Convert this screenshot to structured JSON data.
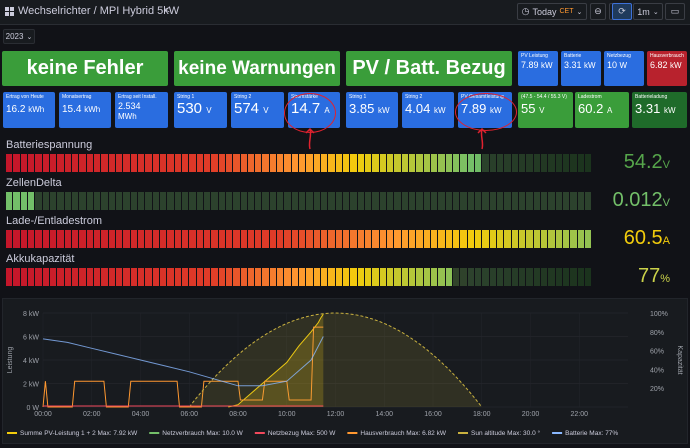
{
  "header": {
    "title": "Wechselrichter  / MPI Hybrid 5kW",
    "time_label": "Today",
    "timezone": "CET",
    "refresh": "1m"
  },
  "variable": {
    "year": "2023"
  },
  "status": [
    {
      "text": "keine Fehler",
      "color": "#3a9d3a"
    },
    {
      "text": "keine Warnungen",
      "color": "#3a9d3a"
    },
    {
      "text": "PV / Batt. Bezug",
      "color": "#3a9d3a"
    }
  ],
  "stats": {
    "top_right": [
      {
        "label": "PV Leistung",
        "value": "7.89",
        "unit": "kW"
      },
      {
        "label": "Batterie",
        "value": "3.31",
        "unit": "kW"
      },
      {
        "label": "Netzbezug",
        "value": "10",
        "unit": "W"
      },
      {
        "label": "Hausverbrauch",
        "value": "6.82",
        "unit": "kW"
      }
    ],
    "row": [
      {
        "label": "Ertrag von Heute",
        "value": "16.2",
        "unit": "kWh"
      },
      {
        "label": "Monatsertrag",
        "value": "15.4",
        "unit": "kWh"
      },
      {
        "label": "Ertrag seit Install.",
        "value": "2.534",
        "unit": "MWh"
      },
      {
        "label": "String 1",
        "value": "530",
        "unit": "V"
      },
      {
        "label": "String 2",
        "value": "574",
        "unit": "V"
      },
      {
        "label": "Stromstärke",
        "value": "14.7",
        "unit": "A"
      },
      {
        "label": "String 1",
        "value": "3.85",
        "unit": "kW"
      },
      {
        "label": "String 2",
        "value": "4.04",
        "unit": "kW"
      },
      {
        "label": "PV Gesamtleistung",
        "value": "7.89",
        "unit": "kW"
      },
      {
        "label": "(47.5 - 54.4 / 55.3 V)",
        "value": "55",
        "unit": "V"
      },
      {
        "label": "Ladestrom",
        "value": "60.2",
        "unit": "A"
      },
      {
        "label": "Batterieladung",
        "value": "3.31",
        "unit": "kW"
      }
    ]
  },
  "gauges": [
    {
      "label": "Batteriespannung",
      "value": "54.2",
      "unit": "V",
      "fraction": 0.82,
      "color": "#56a64b"
    },
    {
      "label": "ZellenDelta",
      "value": "0.012",
      "unit": "V",
      "fraction": 0.05,
      "color": "#73bf69"
    },
    {
      "label": "Lade-/Entladestrom",
      "value": "60.5",
      "unit": "A",
      "fraction": 1.0,
      "color": "#f2cc0c"
    },
    {
      "label": "Akkukapazität",
      "value": "77",
      "unit": "%",
      "fraction": 0.77,
      "color": "#cbd24a"
    }
  ],
  "chart_data": {
    "type": "line",
    "ylabel": "Leistung",
    "y2label": "Kapazität",
    "yticks": [
      "0 W",
      "2 kW",
      "4 kW",
      "6 kW",
      "8 kW"
    ],
    "y2ticks": [
      "20%",
      "40%",
      "60%",
      "80%",
      "100%"
    ],
    "xticks": [
      "00:00",
      "02:00",
      "04:00",
      "06:00",
      "08:00",
      "10:00",
      "12:00",
      "14:00",
      "16:00",
      "18:00",
      "20:00",
      "22:00"
    ],
    "ylim": [
      0,
      8000
    ],
    "series": [
      {
        "name": "Summe PV-Leistung 1 + 2",
        "stat": "Max: 7.92 kW",
        "color": "#f2cc0c",
        "x": [
          7.6,
          8,
          9,
          10,
          10.5,
          11,
          11.3,
          11.4,
          11.5
        ],
        "y": [
          0,
          200,
          2000,
          3800,
          5200,
          6400,
          7200,
          7600,
          7900
        ]
      },
      {
        "name": "Netzverbrauch",
        "stat": "Max: 10.0 W",
        "color": "#73bf69"
      },
      {
        "name": "Netzbezug",
        "stat": "Max: 500 W",
        "color": "#f2495c"
      },
      {
        "name": "Hausverbrauch",
        "stat": "Max: 6.82 kW",
        "color": "#ff9830",
        "x": [
          0,
          0.1,
          0.2,
          1.2,
          1.3,
          2.5,
          2.6,
          3.5,
          3.6,
          5.5,
          5.6,
          6.5,
          6.6,
          8,
          8.1,
          9,
          9.1,
          10,
          10.1,
          11,
          11.1,
          11.5
        ],
        "y": [
          0,
          2200,
          0,
          0,
          2200,
          2200,
          0,
          0,
          2200,
          2200,
          0,
          0,
          2200,
          2200,
          600,
          600,
          2200,
          2200,
          600,
          600,
          6800,
          6800
        ]
      },
      {
        "name": "Sun altitude",
        "stat": "Max: 30.0 °",
        "color": "#c9b13f",
        "x": [
          6,
          8,
          10,
          12,
          14,
          16,
          18
        ],
        "y": [
          -2000,
          3000,
          6800,
          8000,
          6800,
          3000,
          -2000
        ]
      },
      {
        "name": "Batterie",
        "stat": "Max: 77%",
        "color": "#8ab8ff",
        "x": [
          0,
          1,
          2,
          3,
          4,
          5,
          6,
          7,
          8,
          9,
          10,
          11,
          11.5
        ],
        "y": [
          5800,
          5500,
          5000,
          4500,
          4000,
          3500,
          3000,
          2400,
          1800,
          1800,
          2200,
          4000,
          6000
        ]
      }
    ]
  }
}
